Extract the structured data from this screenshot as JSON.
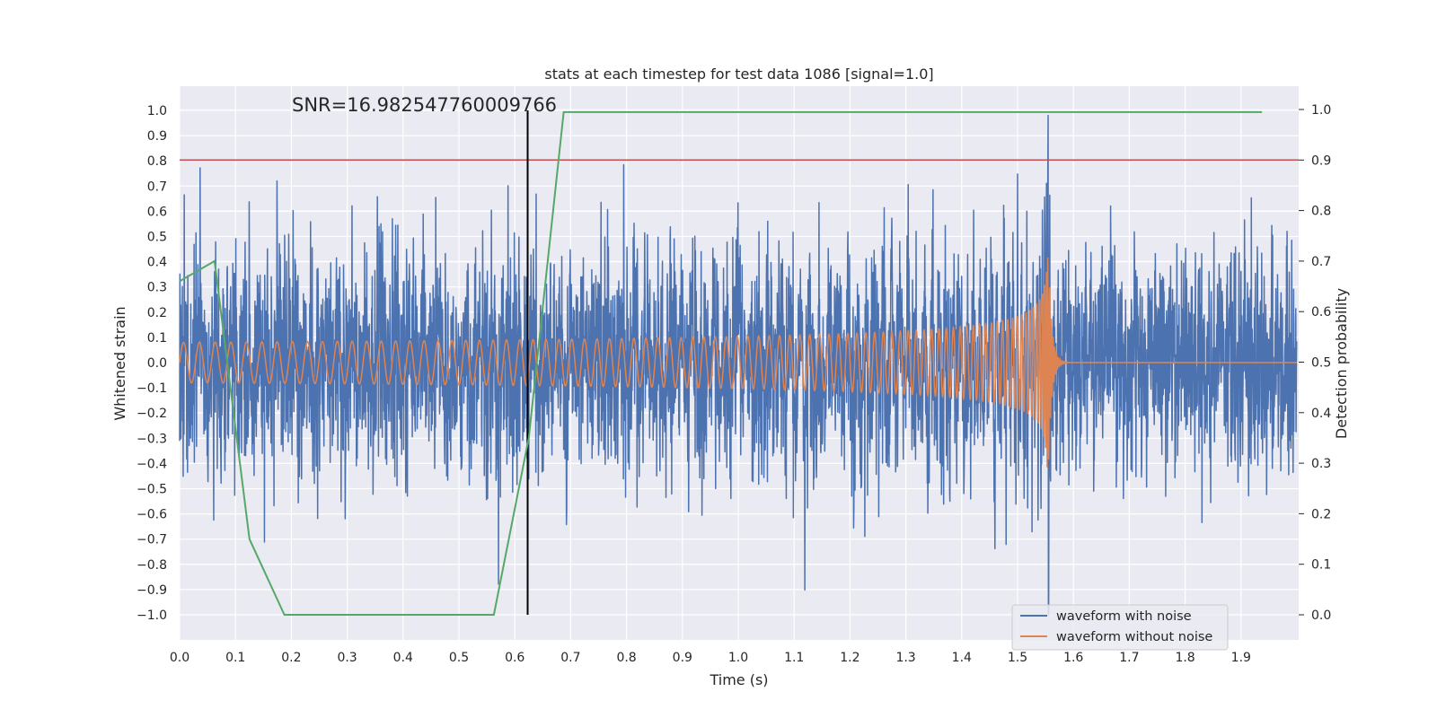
{
  "chart_data": {
    "type": "line",
    "title": "stats at each timestep for test data 1086 [signal=1.0]",
    "xlabel": "Time (s)",
    "ylabel": "Whitened strain",
    "ylabel_right": "Detection probability",
    "annotation": "SNR=16.982547760009766",
    "xlim": [
      0.0,
      2.0
    ],
    "ylim": [
      -1.1,
      1.1
    ],
    "ylim_right": [
      -0.05,
      1.05
    ],
    "x_ticks": [
      "0.0",
      "0.1",
      "0.2",
      "0.3",
      "0.4",
      "0.5",
      "0.6",
      "0.7",
      "0.8",
      "0.9",
      "1.0",
      "1.1",
      "1.2",
      "1.3",
      "1.4",
      "1.5",
      "1.6",
      "1.7",
      "1.8",
      "1.9"
    ],
    "y_ticks": [
      "1.0",
      "0.9",
      "0.8",
      "0.7",
      "0.6",
      "0.5",
      "0.4",
      "0.3",
      "0.2",
      "0.1",
      "0.0",
      "−0.1",
      "−0.2",
      "−0.3",
      "−0.4",
      "−0.5",
      "−0.6",
      "−0.7",
      "−0.8",
      "−0.9",
      "−1.0"
    ],
    "y_right_ticks": [
      "1.0",
      "0.9",
      "0.8",
      "0.7",
      "0.6",
      "0.5",
      "0.4",
      "0.3",
      "0.2",
      "0.1",
      "0.0"
    ],
    "threshold_right": 0.9,
    "vline_x": 0.623,
    "vline_y": [
      -1.0,
      1.0
    ],
    "detection_probability": {
      "x": [
        0.0,
        0.0625,
        0.125,
        0.1875,
        0.25,
        0.3125,
        0.375,
        0.4375,
        0.5,
        0.5625,
        0.625,
        0.6875,
        0.75,
        0.8125,
        0.875,
        0.9375,
        1.0,
        1.0625,
        1.125,
        1.1875,
        1.25,
        1.3125,
        1.375,
        1.4375,
        1.5,
        1.5625,
        1.625,
        1.6875,
        1.75,
        1.8125,
        1.875,
        1.9375
      ],
      "values": [
        0.66,
        0.7,
        0.15,
        0.0,
        0.0,
        0.0,
        0.0,
        0.0,
        0.0,
        0.0,
        0.35,
        0.995,
        0.995,
        0.995,
        0.995,
        0.995,
        0.995,
        0.995,
        0.995,
        0.995,
        0.995,
        0.995,
        0.995,
        0.995,
        0.995,
        0.995,
        0.995,
        0.995,
        0.995,
        0.995,
        0.995,
        0.995
      ]
    },
    "waveform_without_noise": {
      "start_amplitude": 0.08,
      "peak_amplitude": 0.44,
      "merger_time": 1.555,
      "base_frequency_hz": 35
    },
    "waveform_with_noise": {
      "noise_std": 0.22,
      "seed": 1086
    },
    "legend": {
      "placement": "lower-right",
      "entries": [
        "waveform with noise",
        "waveform without noise"
      ]
    },
    "colors": {
      "noisy": "#4c72b0",
      "clean": "#dd8452",
      "probability": "#55a868",
      "threshold": "#c44e52",
      "vline": "#000000",
      "background": "#eaeaf2",
      "grid": "#ffffff"
    }
  }
}
